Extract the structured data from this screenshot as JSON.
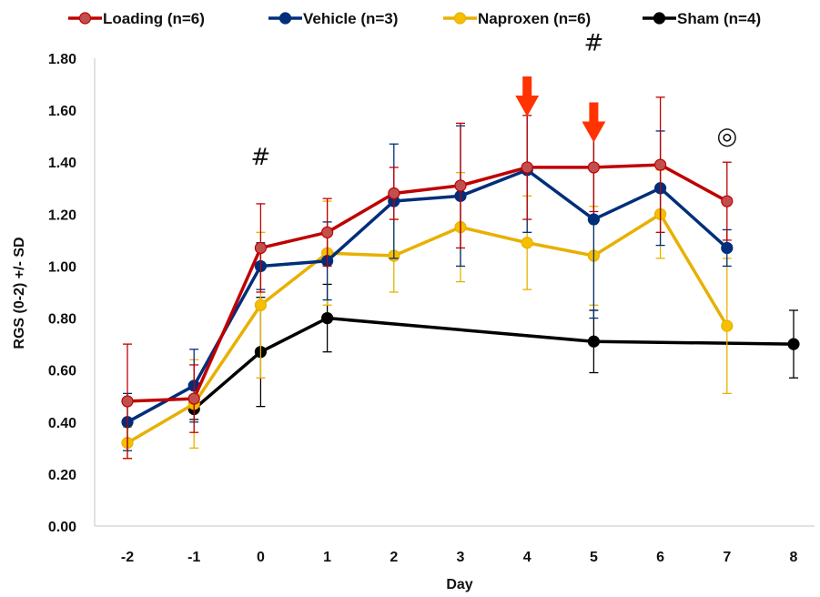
{
  "chart_data": {
    "type": "line",
    "title": "",
    "xlabel": "Day",
    "ylabel": "RGS (0-2) +/- SD",
    "x_categories": [
      "-2",
      "-1",
      "0",
      "1",
      "2",
      "3",
      "4",
      "5",
      "6",
      "7",
      "8"
    ],
    "ylim": [
      0,
      1.8
    ],
    "y_ticks": [
      "0.00",
      "0.20",
      "0.40",
      "0.60",
      "0.80",
      "1.00",
      "1.20",
      "1.40",
      "1.60",
      "1.80"
    ],
    "grid": false,
    "legend_position": "top",
    "series": [
      {
        "name": "Loading (n=6)",
        "color": "#C00000",
        "marker_color": "#C0504D",
        "points": [
          {
            "x": "-2",
            "y": 0.48,
            "sd": 0.22
          },
          {
            "x": "-1",
            "y": 0.49,
            "sd": 0.13
          },
          {
            "x": "0",
            "y": 1.07,
            "sd": 0.17
          },
          {
            "x": "1",
            "y": 1.13,
            "sd": 0.13
          },
          {
            "x": "2",
            "y": 1.28,
            "sd": 0.1
          },
          {
            "x": "3",
            "y": 1.31,
            "sd": 0.24
          },
          {
            "x": "4",
            "y": 1.38,
            "sd": 0.2
          },
          {
            "x": "5",
            "y": 1.38,
            "sd": 0.17
          },
          {
            "x": "6",
            "y": 1.39,
            "sd": 0.26
          },
          {
            "x": "7",
            "y": 1.25,
            "sd": 0.15
          }
        ]
      },
      {
        "name": "Vehicle (n=3)",
        "color": "#002E7A",
        "marker_color": "#002E7A",
        "points": [
          {
            "x": "-2",
            "y": 0.4,
            "sd": 0.11
          },
          {
            "x": "-1",
            "y": 0.54,
            "sd": 0.14
          },
          {
            "x": "0",
            "y": 1.0,
            "sd": 0.09
          },
          {
            "x": "1",
            "y": 1.02,
            "sd": 0.15
          },
          {
            "x": "2",
            "y": 1.25,
            "sd": 0.22
          },
          {
            "x": "3",
            "y": 1.27,
            "sd": 0.27
          },
          {
            "x": "4",
            "y": 1.37,
            "sd": 0.24
          },
          {
            "x": "5",
            "y": 1.18,
            "sd": 0.38
          },
          {
            "x": "6",
            "y": 1.3,
            "sd": 0.22
          },
          {
            "x": "7",
            "y": 1.07,
            "sd": 0.07
          }
        ]
      },
      {
        "name": "Naproxen (n=6)",
        "color": "#E8B000",
        "marker_color": "#F5C000",
        "points": [
          {
            "x": "-2",
            "y": 0.32,
            "sd": 0.06
          },
          {
            "x": "-1",
            "y": 0.47,
            "sd": 0.17
          },
          {
            "x": "0",
            "y": 0.85,
            "sd": 0.28
          },
          {
            "x": "1",
            "y": 1.05,
            "sd": 0.2
          },
          {
            "x": "2",
            "y": 1.04,
            "sd": 0.14
          },
          {
            "x": "3",
            "y": 1.15,
            "sd": 0.21
          },
          {
            "x": "4",
            "y": 1.09,
            "sd": 0.18
          },
          {
            "x": "5",
            "y": 1.04,
            "sd": 0.19
          },
          {
            "x": "6",
            "y": 1.2,
            "sd": 0.17
          },
          {
            "x": "7",
            "y": 0.77,
            "sd": 0.26
          }
        ]
      },
      {
        "name": "Sham (n=4)",
        "color": "#000000",
        "marker_color": "#000000",
        "points": [
          {
            "x": "-1",
            "y": 0.45,
            "sd": 0.04
          },
          {
            "x": "0",
            "y": 0.67,
            "sd": 0.21
          },
          {
            "x": "1",
            "y": 0.8,
            "sd": 0.13
          },
          {
            "x": "5",
            "y": 0.71,
            "sd": 0.12
          },
          {
            "x": "8",
            "y": 0.7,
            "sd": 0.13
          }
        ]
      }
    ],
    "annotations": [
      {
        "text": "#",
        "x": "0",
        "y": 1.39
      },
      {
        "text": "#",
        "x": "5",
        "y": 1.83
      },
      {
        "text": "◎",
        "x": "7",
        "y": 1.47
      },
      {
        "text": "",
        "type": "down-arrow",
        "x": "4",
        "y": 1.73,
        "color": "#FF3300"
      },
      {
        "text": "",
        "type": "down-arrow",
        "x": "5",
        "y": 1.63,
        "color": "#FF3300"
      }
    ]
  }
}
